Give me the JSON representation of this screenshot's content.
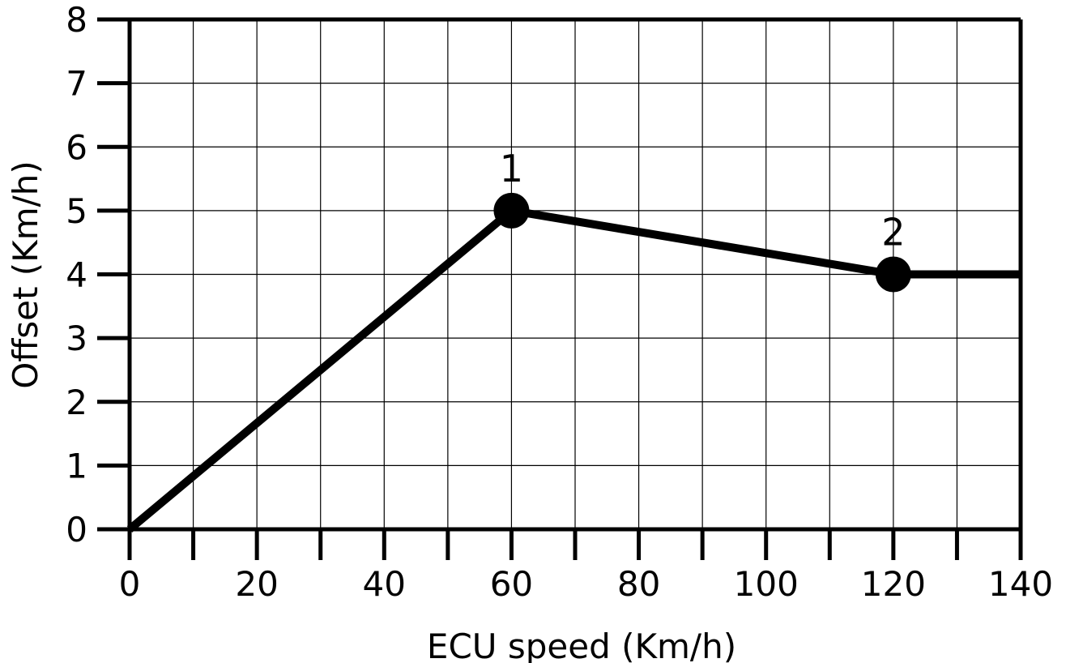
{
  "chart_data": {
    "type": "line",
    "xlabel": "ECU speed (Km/h)",
    "ylabel": "Offset (Km/h)",
    "xlim": [
      0,
      140
    ],
    "ylim": [
      0,
      8
    ],
    "x_ticks": [
      "0",
      "20",
      "40",
      "60",
      "80",
      "100",
      "120",
      "140"
    ],
    "y_ticks": [
      "0",
      "1",
      "2",
      "3",
      "4",
      "5",
      "6",
      "7",
      "8"
    ],
    "grid": true,
    "series": [
      {
        "points": [
          {
            "x": 0,
            "y": 0
          },
          {
            "x": 60,
            "y": 5
          },
          {
            "x": 120,
            "y": 4
          },
          {
            "x": 140,
            "y": 4
          }
        ]
      }
    ],
    "markers": [
      {
        "label": "1",
        "x": 60,
        "y": 5
      },
      {
        "label": "2",
        "x": 120,
        "y": 4
      }
    ]
  }
}
